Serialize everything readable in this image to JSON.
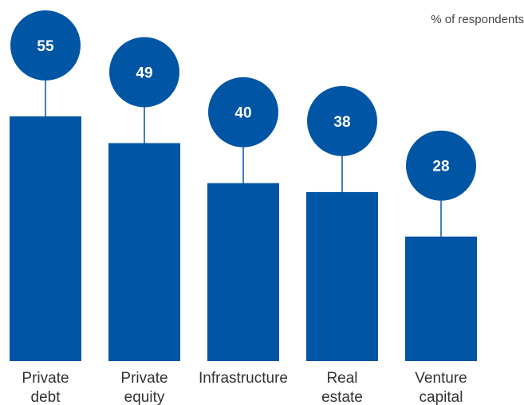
{
  "chart_data": {
    "type": "bar",
    "unit_note": "% of respondents",
    "categories": [
      [
        "Private",
        "debt"
      ],
      [
        "Private",
        "equity"
      ],
      [
        "Infrastructure"
      ],
      [
        "Real",
        "estate"
      ],
      [
        "Venture",
        "capital"
      ]
    ],
    "values": [
      55,
      49,
      40,
      38,
      28
    ],
    "data_labels": [
      "55",
      "49",
      "40",
      "38",
      "28"
    ],
    "value_label_style": "circle-callout",
    "ylim": [
      0,
      55
    ],
    "grid": false,
    "legend": "none",
    "colors": {
      "bar": "#0055a5",
      "label_text": "#ffffff",
      "category_text": "#333333",
      "note_text": "#444444"
    }
  }
}
